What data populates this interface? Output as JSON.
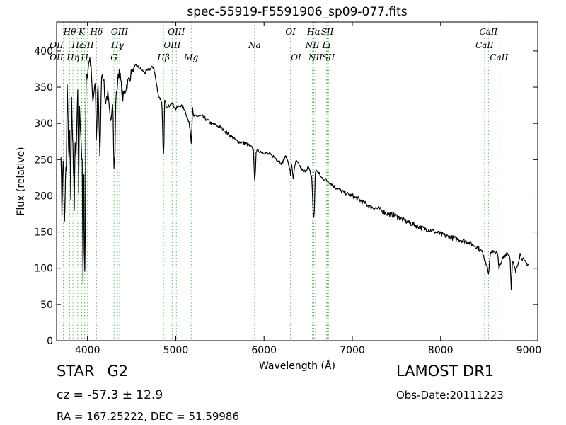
{
  "chart_data": {
    "type": "line",
    "title": "spec-55919-F5591906_sp09-077.fits",
    "xlabel": "Wavelength (Å)",
    "ylabel": "Flux (relative)",
    "xlim": [
      3650,
      9100
    ],
    "ylim": [
      0,
      440
    ],
    "xticks": [
      4000,
      5000,
      6000,
      7000,
      8000,
      9000
    ],
    "yticks": [
      0,
      50,
      100,
      150,
      200,
      250,
      300,
      350,
      400
    ],
    "grid": false,
    "line_color": "#000000",
    "marker_color": "#66bb66",
    "series": [
      {
        "x": [
          3700,
          3710,
          3720,
          3730,
          3740,
          3750,
          3760,
          3770,
          3780,
          3790,
          3800,
          3810,
          3820,
          3830,
          3840,
          3850,
          3860,
          3870,
          3880,
          3890,
          3900,
          3910,
          3920,
          3930,
          3940,
          3950,
          3960,
          3970,
          3980,
          3990,
          4000,
          4020,
          4040,
          4060,
          4080,
          4100,
          4120,
          4140,
          4160,
          4180,
          4200,
          4230,
          4260,
          4290,
          4300,
          4310,
          4320,
          4340,
          4360,
          4400,
          4450,
          4500,
          4550,
          4600,
          4650,
          4700,
          4750,
          4800,
          4840,
          4850,
          4861,
          4870,
          4880,
          4900,
          4950,
          5000,
          5050,
          5100,
          5150,
          5170,
          5175,
          5180,
          5190,
          5200,
          5300,
          5400,
          5500,
          5600,
          5700,
          5800,
          5850,
          5890,
          5896,
          5910,
          5950,
          6000,
          6100,
          6200,
          6250,
          6290,
          6300,
          6330,
          6360,
          6400,
          6450,
          6500,
          6540,
          6563,
          6580,
          6600,
          6650,
          6700,
          6750,
          6800,
          6900,
          7000,
          7100,
          7200,
          7300,
          7400,
          7500,
          7600,
          7700,
          7800,
          7900,
          8000,
          8100,
          8200,
          8300,
          8400,
          8450,
          8498,
          8510,
          8542,
          8560,
          8600,
          8662,
          8680,
          8700,
          8750,
          8800,
          8850,
          8900,
          8950,
          9000
        ],
        "y": [
          260,
          175,
          230,
          265,
          205,
          245,
          230,
          355,
          300,
          250,
          285,
          200,
          330,
          280,
          260,
          350,
          310,
          300,
          320,
          340,
          200,
          330,
          290,
          300,
          250,
          80,
          330,
          100,
          350,
          370,
          365,
          390,
          375,
          330,
          345,
          380,
          355,
          250,
          370,
          365,
          330,
          340,
          300,
          340,
          310,
          245,
          330,
          355,
          375,
          335,
          355,
          370,
          380,
          375,
          370,
          375,
          378,
          340,
          330,
          310,
          258,
          330,
          330,
          320,
          330,
          320,
          325,
          320,
          300,
          290,
          275,
          300,
          320,
          310,
          310,
          300,
          295,
          285,
          275,
          272,
          268,
          262,
          222,
          262,
          262,
          260,
          255,
          245,
          255,
          240,
          260,
          225,
          248,
          242,
          232,
          240,
          226,
          170,
          232,
          235,
          225,
          222,
          218,
          212,
          205,
          200,
          193,
          185,
          182,
          175,
          172,
          165,
          160,
          155,
          152,
          147,
          143,
          140,
          137,
          130,
          125,
          118,
          110,
          98,
          118,
          125,
          117,
          102,
          113,
          122,
          115,
          95,
          120,
          108,
          105
        ],
        "spikes": [
          {
            "x": 3740,
            "y": 165
          },
          {
            "x": 3770,
            "y": 358
          },
          {
            "x": 3850,
            "y": 180
          },
          {
            "x": 3870,
            "y": 255
          },
          {
            "x": 3935,
            "y": 250
          },
          {
            "x": 3968,
            "y": 95
          },
          {
            "x": 4102,
            "y": 260
          },
          {
            "x": 4300,
            "y": 238
          },
          {
            "x": 4861,
            "y": 258
          },
          {
            "x": 5175,
            "y": 275
          },
          {
            "x": 5893,
            "y": 222
          },
          {
            "x": 6300,
            "y": 228
          },
          {
            "x": 6563,
            "y": 170
          },
          {
            "x": 8498,
            "y": 110
          },
          {
            "x": 8542,
            "y": 92
          },
          {
            "x": 8662,
            "y": 98
          },
          {
            "x": 8800,
            "y": 70
          }
        ]
      }
    ],
    "line_labels": [
      {
        "x": 3727,
        "text": "OII",
        "row": 1,
        "align": "end"
      },
      {
        "x": 3727,
        "text": "OII",
        "row": 2,
        "align": "end"
      },
      {
        "x": 3798,
        "text": "Hθ",
        "row": 0,
        "align": "middle"
      },
      {
        "x": 3835,
        "text": "Hη",
        "row": 2,
        "align": "middle"
      },
      {
        "x": 3889,
        "text": "Hε",
        "row": 1,
        "align": "middle"
      },
      {
        "x": 3934,
        "text": "K",
        "row": 0,
        "align": "middle"
      },
      {
        "x": 3968,
        "text": "H",
        "row": 2,
        "align": "middle"
      },
      {
        "x": 4000,
        "text": "SII",
        "row": 1,
        "align": "middle"
      },
      {
        "x": 4102,
        "text": "Hδ",
        "row": 0,
        "align": "middle"
      },
      {
        "x": 4300,
        "text": "G",
        "row": 2,
        "align": "middle"
      },
      {
        "x": 4340,
        "text": "Hγ",
        "row": 1,
        "align": "middle"
      },
      {
        "x": 4363,
        "text": "OIII",
        "row": 0,
        "align": "middle"
      },
      {
        "x": 4861,
        "text": "Hβ",
        "row": 2,
        "align": "middle"
      },
      {
        "x": 4959,
        "text": "OIII",
        "row": 1,
        "align": "middle"
      },
      {
        "x": 5007,
        "text": "OIII",
        "row": 0,
        "align": "middle"
      },
      {
        "x": 5175,
        "text": "Mg",
        "row": 2,
        "align": "middle"
      },
      {
        "x": 5893,
        "text": "Na",
        "row": 1,
        "align": "middle"
      },
      {
        "x": 6300,
        "text": "OI",
        "row": 0,
        "align": "middle"
      },
      {
        "x": 6363,
        "text": "OI",
        "row": 2,
        "align": "middle"
      },
      {
        "x": 6548,
        "text": "NII",
        "row": 1,
        "align": "middle"
      },
      {
        "x": 6563,
        "text": "Hα",
        "row": 0,
        "align": "middle"
      },
      {
        "x": 6583,
        "text": "NII",
        "row": 2,
        "align": "middle"
      },
      {
        "x": 6707,
        "text": "Li",
        "row": 1,
        "align": "middle"
      },
      {
        "x": 6716,
        "text": "SII",
        "row": 0,
        "align": "middle"
      },
      {
        "x": 6731,
        "text": "SII",
        "row": 2,
        "align": "middle"
      },
      {
        "x": 8498,
        "text": "CaII",
        "row": 1,
        "align": "middle"
      },
      {
        "x": 8542,
        "text": "CaII",
        "row": 0,
        "align": "middle"
      },
      {
        "x": 8662,
        "text": "CaII",
        "row": 2,
        "align": "middle"
      }
    ]
  },
  "info": {
    "class_label": "STAR",
    "subclass": "G2",
    "cz_text": "cz = -57.3 ± 12.9",
    "radec_text": "RA = 167.25222, DEC = 51.59986",
    "survey": "LAMOST DR1",
    "obs_date": "Obs-Date:20111223"
  }
}
